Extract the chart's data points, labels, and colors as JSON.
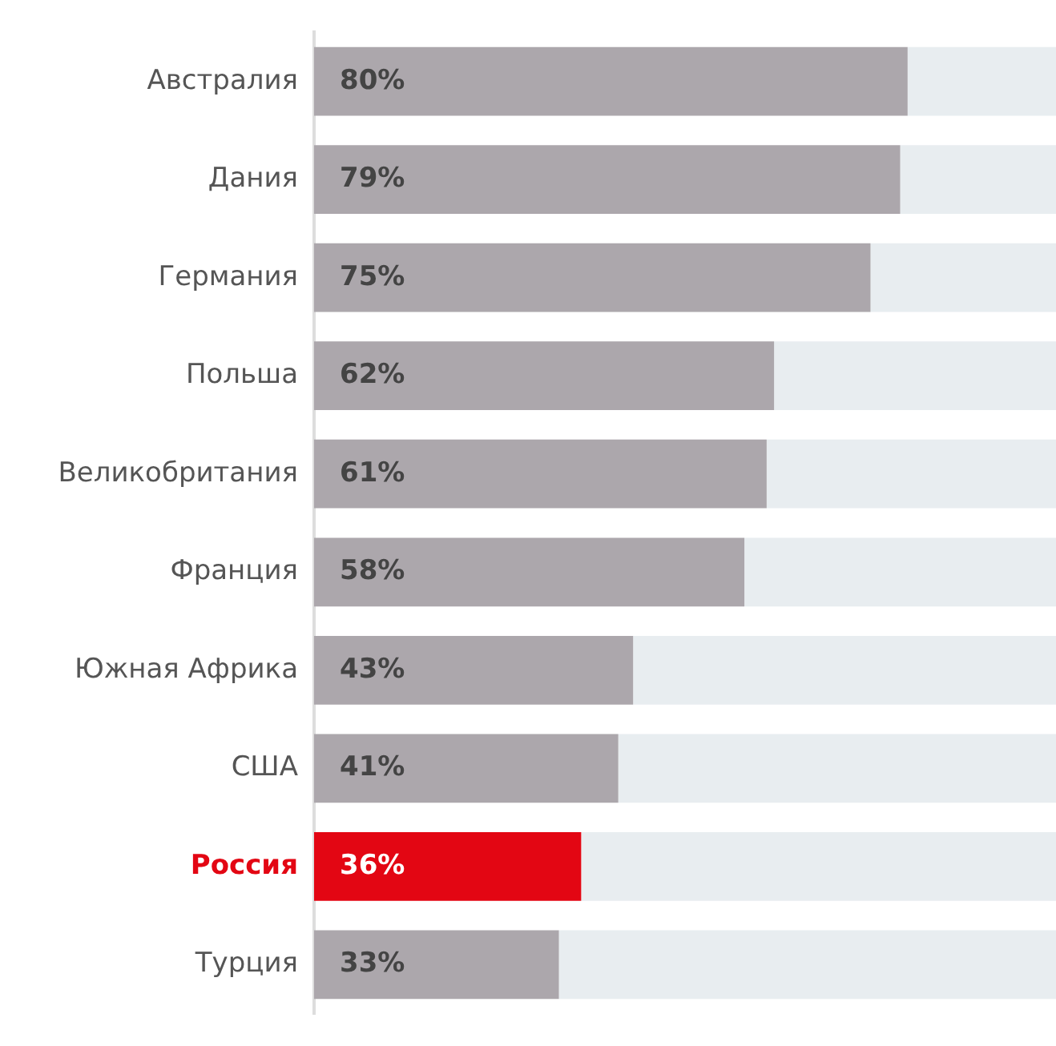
{
  "chart_data": {
    "type": "bar",
    "orientation": "horizontal",
    "stacked": true,
    "categories": [
      "Австралия",
      "Дания",
      "Германия",
      "Польша",
      "Великобритания",
      "Франция",
      "Южная Африка",
      "США",
      "Россия",
      "Турция"
    ],
    "series": [
      {
        "color": "#aca7ac",
        "colors": [
          "#aca7ac",
          "#aca7ac",
          "#aca7ac",
          "#aca7ac",
          "#aca7ac",
          "#aca7ac",
          "#aca7ac",
          "#aca7ac",
          "#e30613",
          "#aca7ac"
        ],
        "values": [
          80,
          79,
          75,
          62,
          61,
          58,
          43,
          41,
          36,
          33
        ],
        "value_labels": [
          "80%",
          "79%",
          "75%",
          "62%",
          "61%",
          "58%",
          "43%",
          "41%",
          "36%",
          "33%"
        ]
      },
      {
        "color": "#e8edf0",
        "values": [
          20,
          21,
          25,
          38,
          39,
          42,
          57,
          59,
          64,
          67
        ]
      }
    ],
    "xlim": [
      0,
      100
    ],
    "tick_labels": "y",
    "grid": false,
    "legend": false
  }
}
